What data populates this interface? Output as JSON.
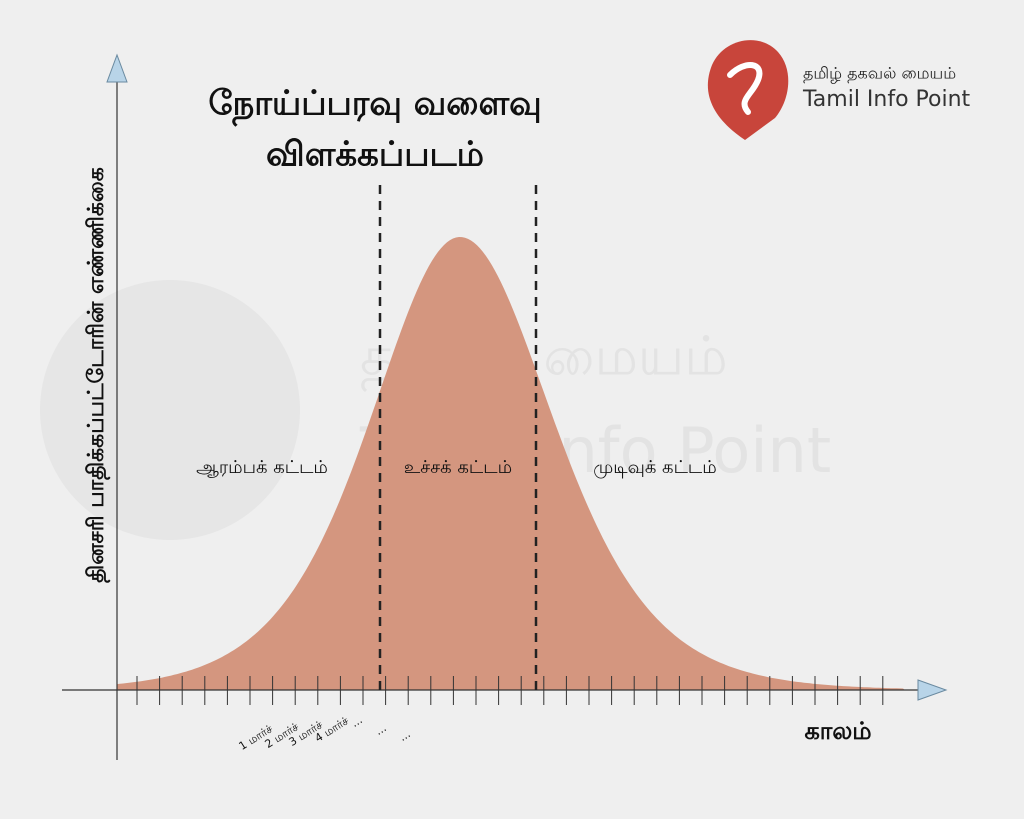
{
  "header": {
    "title_lines": [
      "நோய்ப்பரவு வளைவு",
      "விளக்கப்படம்"
    ]
  },
  "logo": {
    "name_ta": "தமிழ் தகவல் மையம்",
    "name_en": "Tamil Info Point"
  },
  "watermark": {
    "name_ta": "தகவல் மையம்",
    "name_en": "Tamil Info Point"
  },
  "axes": {
    "y_label": "தினசரி பாதிக்கப்பட்டோரின் எண்ணிக்கை",
    "x_label": "காலம்"
  },
  "phases": [
    "ஆரம்பக் கட்டம்",
    "உச்சக் கட்டம்",
    "முடிவுக் கட்டம்"
  ],
  "ticks": [
    "1 மார்ச்",
    "2 மார்ச்",
    "3 மார்ச்",
    "4 மார்ச்",
    "...",
    "...",
    "..."
  ]
}
